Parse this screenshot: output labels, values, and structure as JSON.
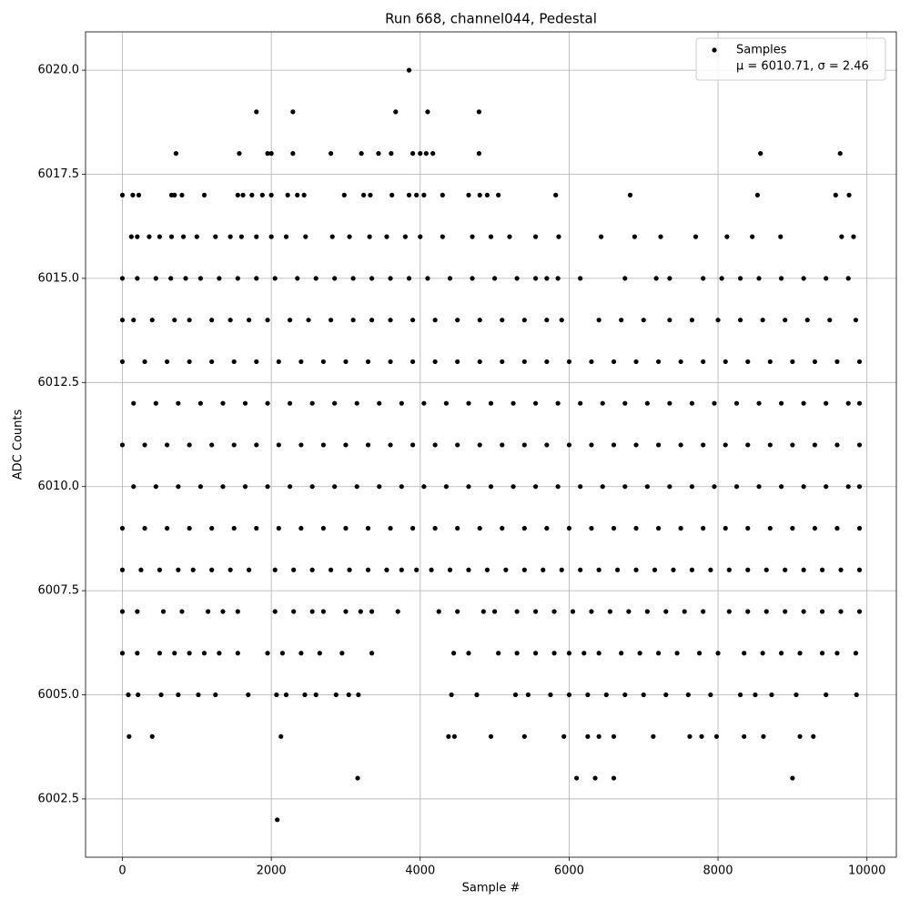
{
  "chart_data": {
    "type": "scatter",
    "title": "Run 668, channel044, Pedestal",
    "x_label": "Sample #",
    "y_label": "ADC Counts",
    "xlim": [
      -495,
      10395
    ],
    "ylim": [
      6001.1,
      6020.92
    ],
    "xticks": [
      0,
      2000,
      4000,
      6000,
      8000,
      10000
    ],
    "yticks": [
      6002.5,
      {
        "value": 6005,
        "label": "6005.0"
      },
      6007.5,
      {
        "value": 6010,
        "label": "6010.0"
      },
      6012.5,
      {
        "value": 6015,
        "label": "6015.0"
      },
      6017.5,
      {
        "value": 6020,
        "label": "6020.0"
      }
    ],
    "grid": true,
    "legend": "upper right",
    "legend_note": "μ = 6010.71, σ = 2.46",
    "x": [
      3850,
      1800,
      2290,
      3670,
      4100,
      4790,
      720,
      1570,
      1950,
      2000,
      2290,
      2800,
      3210,
      3440,
      3610,
      3900,
      4000,
      4080,
      4170,
      4790,
      8570,
      9640,
      0,
      140,
      220,
      660,
      700,
      800,
      1100,
      1550,
      1620,
      1740,
      1880,
      2000,
      2220,
      2350,
      2440,
      2980,
      3240,
      3330,
      3620,
      3850,
      3950,
      4050,
      4300,
      4650,
      4800,
      4900,
      5050,
      5820,
      6820,
      8530,
      9580,
      9760,
      120,
      200,
      360,
      500,
      660,
      820,
      1000,
      1250,
      1450,
      1600,
      1800,
      2000,
      2200,
      2460,
      2820,
      3050,
      3320,
      3550,
      3800,
      4000,
      4300,
      4700,
      4950,
      5200,
      5550,
      5860,
      6430,
      6880,
      7230,
      7700,
      8120,
      8460,
      8840,
      9660,
      9820,
      0,
      200,
      450,
      650,
      850,
      1050,
      1300,
      1550,
      1800,
      2050,
      2350,
      2600,
      2850,
      3100,
      3350,
      3600,
      3850,
      4100,
      4400,
      4700,
      5000,
      5300,
      5550,
      5700,
      5850,
      6150,
      6750,
      7170,
      7350,
      7800,
      8050,
      8300,
      8550,
      8850,
      9150,
      9450,
      9750,
      0,
      150,
      400,
      700,
      900,
      1200,
      1450,
      1700,
      1950,
      2250,
      2500,
      2800,
      3100,
      3350,
      3600,
      3900,
      4200,
      4500,
      4800,
      5100,
      5400,
      5700,
      5900,
      6400,
      6700,
      7000,
      7350,
      7650,
      8000,
      8300,
      8600,
      8900,
      9200,
      9500,
      9850,
      0,
      300,
      600,
      900,
      1200,
      1500,
      1800,
      2100,
      2400,
      2700,
      3000,
      3300,
      3600,
      3900,
      4200,
      4500,
      4800,
      5100,
      5400,
      5700,
      6000,
      6300,
      6600,
      6900,
      7200,
      7500,
      7800,
      8100,
      8400,
      8700,
      9000,
      9300,
      9600,
      9900,
      150,
      450,
      750,
      1050,
      1350,
      1650,
      1950,
      2250,
      2550,
      2850,
      3150,
      3450,
      3750,
      4050,
      4350,
      4650,
      4950,
      5250,
      5550,
      5850,
      6150,
      6450,
      6750,
      7050,
      7350,
      7650,
      7950,
      8250,
      8550,
      8850,
      9150,
      9450,
      9750,
      9900,
      0,
      300,
      600,
      900,
      1200,
      1500,
      1800,
      2100,
      2400,
      2700,
      3000,
      3300,
      3600,
      3900,
      4200,
      4500,
      4800,
      5100,
      5400,
      5700,
      6000,
      6300,
      6600,
      6900,
      7200,
      7500,
      7800,
      8100,
      8400,
      8700,
      9000,
      9300,
      9600,
      9900,
      150,
      450,
      750,
      1050,
      1350,
      1650,
      1950,
      2250,
      2550,
      2850,
      3150,
      3450,
      3750,
      4050,
      4350,
      4650,
      4950,
      5250,
      5550,
      5850,
      6150,
      6450,
      6750,
      7050,
      7350,
      7650,
      7950,
      8250,
      8550,
      8850,
      9150,
      9450,
      9750,
      9900,
      0,
      300,
      600,
      900,
      1200,
      1500,
      1800,
      2100,
      2400,
      2700,
      3000,
      3300,
      3600,
      3900,
      4200,
      4500,
      4800,
      5100,
      5400,
      5700,
      6000,
      6300,
      6600,
      6900,
      7200,
      7500,
      7800,
      8100,
      8400,
      8700,
      9000,
      9300,
      9600,
      9900,
      0,
      250,
      500,
      750,
      950,
      1200,
      1450,
      1700,
      2050,
      2300,
      2550,
      2800,
      3050,
      3300,
      3550,
      3750,
      3950,
      4150,
      4400,
      4650,
      4900,
      5150,
      5400,
      5650,
      5900,
      6150,
      6400,
      6650,
      6900,
      7150,
      7400,
      7650,
      7900,
      8150,
      8400,
      8650,
      8900,
      9150,
      9400,
      9650,
      9900,
      0,
      200,
      550,
      800,
      1150,
      1350,
      1550,
      2050,
      2300,
      2550,
      2700,
      3000,
      3200,
      3350,
      3700,
      4250,
      4500,
      4850,
      5000,
      5300,
      5550,
      5800,
      6050,
      6300,
      6550,
      6800,
      7050,
      7300,
      7550,
      7800,
      8150,
      8400,
      8650,
      8900,
      9150,
      9400,
      9650,
      9900,
      0,
      200,
      500,
      700,
      900,
      1100,
      1300,
      1550,
      1950,
      2150,
      2400,
      2650,
      2950,
      3350,
      4450,
      4650,
      5050,
      5300,
      5550,
      5800,
      6000,
      6200,
      6400,
      6700,
      6950,
      7200,
      7450,
      7750,
      8000,
      8350,
      8600,
      8850,
      9100,
      9400,
      9600,
      9850,
      80,
      210,
      520,
      750,
      1020,
      1250,
      1690,
      2070,
      2200,
      2450,
      2600,
      2870,
      3040,
      3170,
      4420,
      4760,
      5280,
      5450,
      5750,
      6000,
      6250,
      6500,
      6750,
      7000,
      7300,
      7600,
      7900,
      8300,
      8500,
      8720,
      9050,
      9450,
      9860,
      90,
      400,
      2130,
      4380,
      4460,
      4950,
      5400,
      5930,
      6250,
      6400,
      6600,
      7130,
      7620,
      7780,
      7980,
      8350,
      8610,
      9100,
      9280,
      3160,
      6100,
      6350,
      6600,
      9000,
      2080
    ],
    "series": [
      {
        "name": "Samples",
        "color": "#000000",
        "values": [
          6020,
          6019,
          6019,
          6019,
          6019,
          6019,
          6018,
          6018,
          6018,
          6018,
          6018,
          6018,
          6018,
          6018,
          6018,
          6018,
          6018,
          6018,
          6018,
          6018,
          6018,
          6018,
          6017,
          6017,
          6017,
          6017,
          6017,
          6017,
          6017,
          6017,
          6017,
          6017,
          6017,
          6017,
          6017,
          6017,
          6017,
          6017,
          6017,
          6017,
          6017,
          6017,
          6017,
          6017,
          6017,
          6017,
          6017,
          6017,
          6017,
          6017,
          6017,
          6017,
          6017,
          6017,
          6016,
          6016,
          6016,
          6016,
          6016,
          6016,
          6016,
          6016,
          6016,
          6016,
          6016,
          6016,
          6016,
          6016,
          6016,
          6016,
          6016,
          6016,
          6016,
          6016,
          6016,
          6016,
          6016,
          6016,
          6016,
          6016,
          6016,
          6016,
          6016,
          6016,
          6016,
          6016,
          6016,
          6016,
          6016,
          6015,
          6015,
          6015,
          6015,
          6015,
          6015,
          6015,
          6015,
          6015,
          6015,
          6015,
          6015,
          6015,
          6015,
          6015,
          6015,
          6015,
          6015,
          6015,
          6015,
          6015,
          6015,
          6015,
          6015,
          6015,
          6015,
          6015,
          6015,
          6015,
          6015,
          6015,
          6015,
          6015,
          6015,
          6015,
          6015,
          6015,
          6014,
          6014,
          6014,
          6014,
          6014,
          6014,
          6014,
          6014,
          6014,
          6014,
          6014,
          6014,
          6014,
          6014,
          6014,
          6014,
          6014,
          6014,
          6014,
          6014,
          6014,
          6014,
          6014,
          6014,
          6014,
          6014,
          6014,
          6014,
          6014,
          6014,
          6014,
          6014,
          6014,
          6014,
          6014,
          6013,
          6013,
          6013,
          6013,
          6013,
          6013,
          6013,
          6013,
          6013,
          6013,
          6013,
          6013,
          6013,
          6013,
          6013,
          6013,
          6013,
          6013,
          6013,
          6013,
          6013,
          6013,
          6013,
          6013,
          6013,
          6013,
          6013,
          6013,
          6013,
          6013,
          6013,
          6013,
          6013,
          6013,
          6012,
          6012,
          6012,
          6012,
          6012,
          6012,
          6012,
          6012,
          6012,
          6012,
          6012,
          6012,
          6012,
          6012,
          6012,
          6012,
          6012,
          6012,
          6012,
          6012,
          6012,
          6012,
          6012,
          6012,
          6012,
          6012,
          6012,
          6012,
          6012,
          6012,
          6012,
          6012,
          6012,
          6012,
          6011,
          6011,
          6011,
          6011,
          6011,
          6011,
          6011,
          6011,
          6011,
          6011,
          6011,
          6011,
          6011,
          6011,
          6011,
          6011,
          6011,
          6011,
          6011,
          6011,
          6011,
          6011,
          6011,
          6011,
          6011,
          6011,
          6011,
          6011,
          6011,
          6011,
          6011,
          6011,
          6011,
          6011,
          6010,
          6010,
          6010,
          6010,
          6010,
          6010,
          6010,
          6010,
          6010,
          6010,
          6010,
          6010,
          6010,
          6010,
          6010,
          6010,
          6010,
          6010,
          6010,
          6010,
          6010,
          6010,
          6010,
          6010,
          6010,
          6010,
          6010,
          6010,
          6010,
          6010,
          6010,
          6010,
          6010,
          6010,
          6009,
          6009,
          6009,
          6009,
          6009,
          6009,
          6009,
          6009,
          6009,
          6009,
          6009,
          6009,
          6009,
          6009,
          6009,
          6009,
          6009,
          6009,
          6009,
          6009,
          6009,
          6009,
          6009,
          6009,
          6009,
          6009,
          6009,
          6009,
          6009,
          6009,
          6009,
          6009,
          6009,
          6009,
          6008,
          6008,
          6008,
          6008,
          6008,
          6008,
          6008,
          6008,
          6008,
          6008,
          6008,
          6008,
          6008,
          6008,
          6008,
          6008,
          6008,
          6008,
          6008,
          6008,
          6008,
          6008,
          6008,
          6008,
          6008,
          6008,
          6008,
          6008,
          6008,
          6008,
          6008,
          6008,
          6008,
          6008,
          6008,
          6008,
          6008,
          6008,
          6008,
          6008,
          6008,
          6007,
          6007,
          6007,
          6007,
          6007,
          6007,
          6007,
          6007,
          6007,
          6007,
          6007,
          6007,
          6007,
          6007,
          6007,
          6007,
          6007,
          6007,
          6007,
          6007,
          6007,
          6007,
          6007,
          6007,
          6007,
          6007,
          6007,
          6007,
          6007,
          6007,
          6007,
          6007,
          6007,
          6007,
          6007,
          6007,
          6007,
          6007,
          6006,
          6006,
          6006,
          6006,
          6006,
          6006,
          6006,
          6006,
          6006,
          6006,
          6006,
          6006,
          6006,
          6006,
          6006,
          6006,
          6006,
          6006,
          6006,
          6006,
          6006,
          6006,
          6006,
          6006,
          6006,
          6006,
          6006,
          6006,
          6006,
          6006,
          6006,
          6006,
          6006,
          6006,
          6006,
          6006,
          6005,
          6005,
          6005,
          6005,
          6005,
          6005,
          6005,
          6005,
          6005,
          6005,
          6005,
          6005,
          6005,
          6005,
          6005,
          6005,
          6005,
          6005,
          6005,
          6005,
          6005,
          6005,
          6005,
          6005,
          6005,
          6005,
          6005,
          6005,
          6005,
          6005,
          6005,
          6005,
          6005,
          6004,
          6004,
          6004,
          6004,
          6004,
          6004,
          6004,
          6004,
          6004,
          6004,
          6004,
          6004,
          6004,
          6004,
          6004,
          6004,
          6004,
          6004,
          6004,
          6003,
          6003,
          6003,
          6003,
          6003,
          6002
        ]
      }
    ]
  }
}
